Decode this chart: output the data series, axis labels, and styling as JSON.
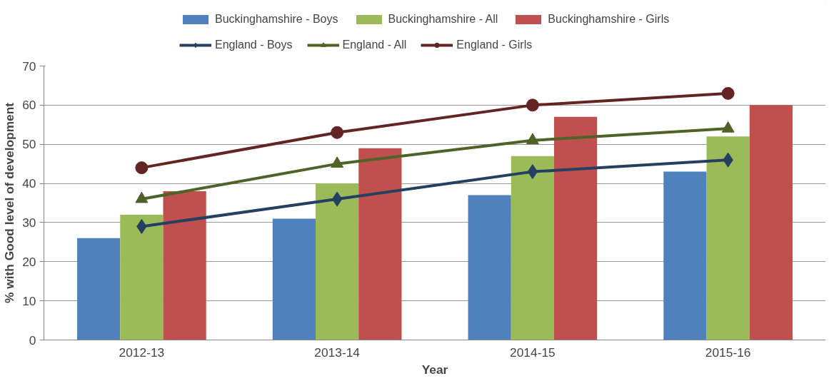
{
  "chart_data": {
    "type": "bar",
    "xlabel": "Year",
    "ylabel": "% with Good level of development",
    "categories": [
      "2012-13",
      "2013-14",
      "2014-15",
      "2015-16"
    ],
    "series": [
      {
        "name": "Buckinghamshire - Boys",
        "color": "#4f81bd",
        "values": [
          26,
          31,
          37,
          43
        ]
      },
      {
        "name": "Buckinghamshire - All",
        "color": "#9bbb59",
        "values": [
          32,
          40,
          47,
          52
        ]
      },
      {
        "name": "Buckinghamshire - Girls",
        "color": "#c0504d",
        "values": [
          38,
          49,
          57,
          60
        ]
      },
      {
        "name": "England - Boys",
        "type": "line",
        "marker": "diamond",
        "color": "#243f60",
        "values": [
          29,
          36,
          43,
          46
        ]
      },
      {
        "name": "England - All",
        "type": "line",
        "marker": "triangle",
        "color": "#4f6228",
        "values": [
          36,
          45,
          51,
          54
        ]
      },
      {
        "name": "England - Girls",
        "type": "line",
        "marker": "circle",
        "color": "#632523",
        "values": [
          44,
          53,
          60,
          63
        ]
      }
    ],
    "ylim": [
      0,
      70
    ],
    "yticks": [
      0,
      10,
      20,
      30,
      40,
      50,
      60,
      70
    ],
    "grid": "y",
    "legend": "top"
  }
}
